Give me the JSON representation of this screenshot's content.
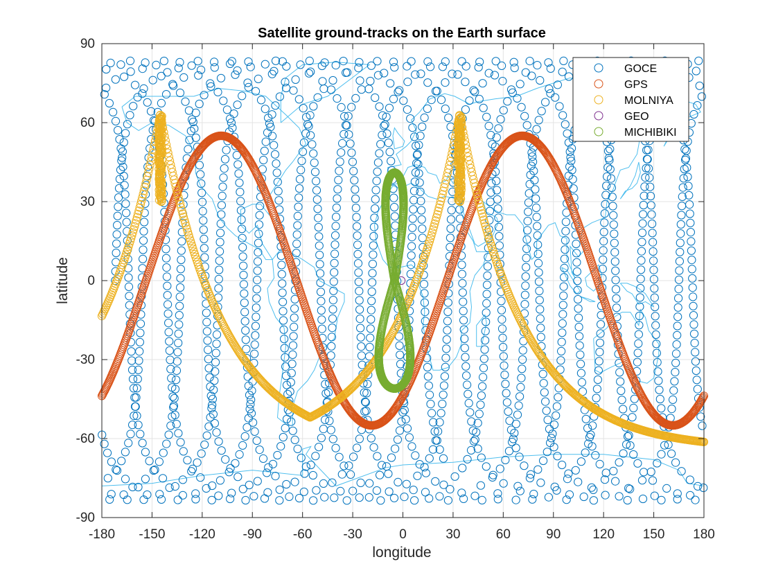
{
  "chart_data": {
    "type": "scatter",
    "title": "Satellite ground-tracks on the Earth surface",
    "xlabel": "longitude",
    "ylabel": "latitude",
    "xlim": [
      -180,
      180
    ],
    "ylim": [
      -90,
      90
    ],
    "xticks": [
      -180,
      -150,
      -120,
      -90,
      -60,
      -30,
      0,
      30,
      60,
      90,
      120,
      150,
      180
    ],
    "yticks": [
      -90,
      -60,
      -30,
      0,
      30,
      60,
      90
    ],
    "grid": true,
    "legend_position": "top-right",
    "background_map": "world coastlines",
    "series": [
      {
        "name": "GOCE",
        "color": "#0072BD",
        "marker": "circle-open",
        "description_model": "polar LEO: inclination 83.5 deg, 15.7 revolutions per day, 1 day span",
        "inclination": 83.5,
        "revs": 15.7,
        "lon0": -172,
        "points": 1600
      },
      {
        "name": "GPS",
        "color": "#D95319",
        "marker": "circle-open",
        "description_model": "MEO: inclination 55 deg, two sinusoidal cycles across longitude",
        "inclination": 55,
        "points": 900,
        "lon_range": [
          -180,
          180
        ],
        "lat_start": -34
      },
      {
        "name": "MOLNIYA",
        "color": "#EDB120",
        "marker": "circle-open",
        "apogee_longitudes": [
          -145,
          34
        ],
        "max_lat": 63,
        "min_lat": -64,
        "points": 700
      },
      {
        "name": "GEO",
        "color": "#7E2F8E",
        "marker": "circle-open",
        "lon": -1,
        "lat": 0
      },
      {
        "name": "MICHIBIKI",
        "color": "#77AC30",
        "marker": "circle-open",
        "description_model": "quasi-zenith figure-eight centered near -5 deg longitude",
        "center_lon": -5,
        "lat_range": [
          -41,
          41
        ],
        "points": 500
      }
    ]
  }
}
